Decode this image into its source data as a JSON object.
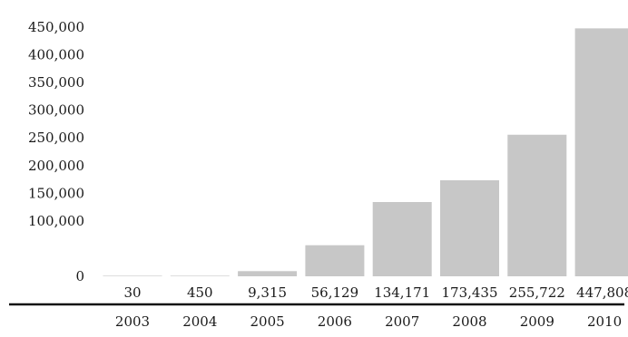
{
  "chart_data": {
    "type": "bar",
    "title": "",
    "xlabel": "",
    "ylabel": "",
    "categories": [
      "2003",
      "2004",
      "2005",
      "2006",
      "2007",
      "2008",
      "2009",
      "2010"
    ],
    "values": [
      30,
      450,
      9315,
      56129,
      134171,
      173435,
      255722,
      447808
    ],
    "value_labels": [
      "30",
      "450",
      "9,315",
      "56,129",
      "134,171",
      "173,435",
      "255,722",
      "447,808"
    ],
    "ylim": [
      0,
      450000
    ],
    "yticks": [
      0,
      50000,
      100000,
      150000,
      200000,
      250000,
      300000,
      350000,
      400000,
      450000
    ],
    "ytick_labels": [
      "0",
      "",
      "100,000",
      "150,000",
      "200,000",
      "250,000",
      "300,000",
      "350,000",
      "400,000",
      "450,000"
    ],
    "grid": false,
    "legend": "none",
    "bar_color": "#c7c7c7"
  }
}
